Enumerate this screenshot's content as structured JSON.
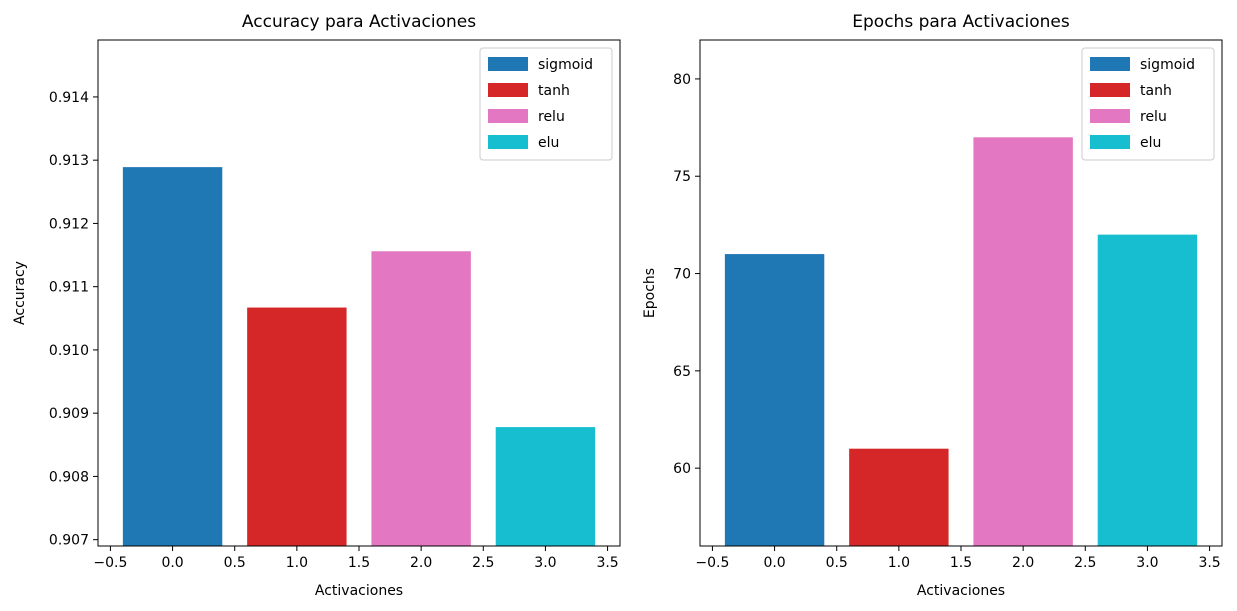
{
  "chart_data": [
    {
      "type": "bar",
      "title": "Accuracy para Activaciones",
      "xlabel": "Activaciones",
      "ylabel": "Accuracy",
      "x": [
        0,
        1,
        2,
        3
      ],
      "bar_width": 0.8,
      "values": [
        0.91289,
        0.91067,
        0.91156,
        0.90878
      ],
      "xlim": [
        -0.6,
        3.6
      ],
      "ylim": [
        0.9069,
        0.9149
      ],
      "xticks": [
        -0.5,
        0.0,
        0.5,
        1.0,
        1.5,
        2.0,
        2.5,
        3.0,
        3.5
      ],
      "xtick_labels": [
        "−0.5",
        "0.0",
        "0.5",
        "1.0",
        "1.5",
        "2.0",
        "2.5",
        "3.0",
        "3.5"
      ],
      "yticks": [
        0.907,
        0.908,
        0.909,
        0.91,
        0.911,
        0.912,
        0.913,
        0.914
      ],
      "ytick_labels": [
        "0.907",
        "0.908",
        "0.909",
        "0.910",
        "0.911",
        "0.912",
        "0.913",
        "0.914"
      ],
      "legend": [
        "sigmoid",
        "tanh",
        "relu",
        "elu"
      ],
      "legend_position": "top-right",
      "grid": false,
      "colors": [
        "#1f77b4",
        "#d62728",
        "#e377c2",
        "#17becf"
      ]
    },
    {
      "type": "bar",
      "title": "Epochs para Activaciones",
      "xlabel": "Activaciones",
      "ylabel": "Epochs",
      "x": [
        0,
        1,
        2,
        3
      ],
      "bar_width": 0.8,
      "values": [
        71,
        61,
        77,
        72
      ],
      "xlim": [
        -0.6,
        3.6
      ],
      "ylim": [
        56,
        82
      ],
      "xticks": [
        -0.5,
        0.0,
        0.5,
        1.0,
        1.5,
        2.0,
        2.5,
        3.0,
        3.5
      ],
      "xtick_labels": [
        "−0.5",
        "0.0",
        "0.5",
        "1.0",
        "1.5",
        "2.0",
        "2.5",
        "3.0",
        "3.5"
      ],
      "yticks": [
        60,
        65,
        70,
        75,
        80
      ],
      "ytick_labels": [
        "60",
        "65",
        "70",
        "75",
        "80"
      ],
      "legend": [
        "sigmoid",
        "tanh",
        "relu",
        "elu"
      ],
      "legend_position": "top-right",
      "grid": false,
      "colors": [
        "#1f77b4",
        "#d62728",
        "#e377c2",
        "#17becf"
      ]
    }
  ]
}
